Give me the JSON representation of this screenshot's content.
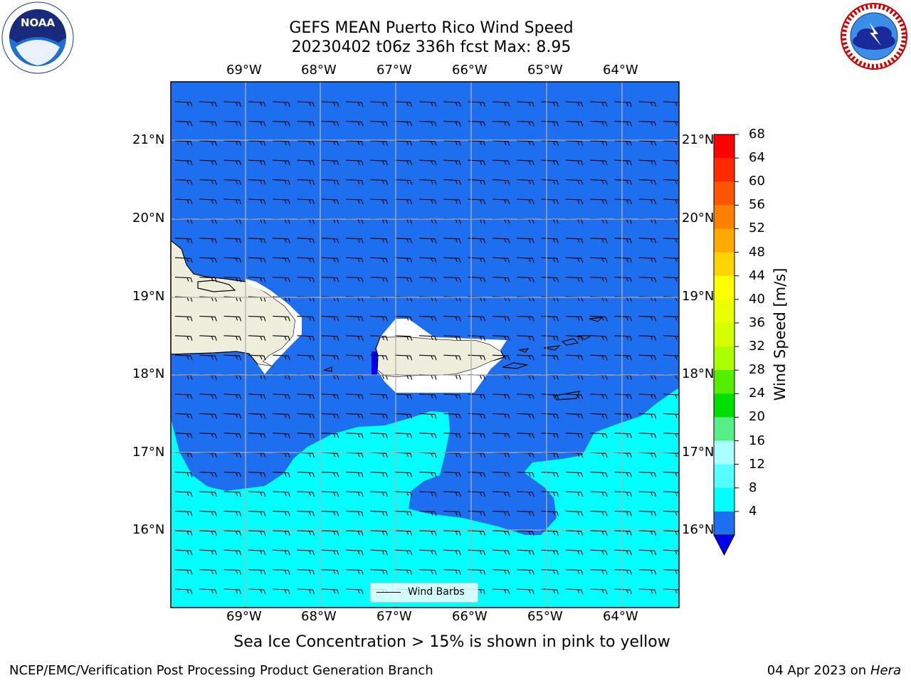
{
  "header": {
    "title_line1": "GEFS MEAN Puerto Rico Wind Speed",
    "title_line2": "20230402 t06z 336h fcst   Max: 8.95"
  },
  "map": {
    "lon_labels_top": [
      "69°W",
      "68°W",
      "67°W",
      "66°W",
      "65°W",
      "64°W"
    ],
    "lon_labels_bottom": [
      "69°W",
      "68°W",
      "67°W",
      "66°W",
      "65°W",
      "64°W"
    ],
    "lat_labels_left": [
      "21°N",
      "20°N",
      "19°N",
      "18°N",
      "17°N",
      "16°N"
    ],
    "lat_labels_right": [
      "21°N",
      "20°N",
      "19°N",
      "18°N",
      "17°N",
      "16°N"
    ],
    "legend_label": "Wind Barbs",
    "colors": {
      "ocean_4_8": "#1e6ef0",
      "ocean_8_12": "#00ffff",
      "land": "#efeedc",
      "below_4": "#0000f0"
    }
  },
  "colorbar": {
    "title": "Wind Speed [m/s]",
    "ticks": [
      "68",
      "64",
      "60",
      "56",
      "52",
      "48",
      "44",
      "40",
      "36",
      "32",
      "28",
      "24",
      "20",
      "16",
      "12",
      "8",
      "4"
    ],
    "colors_top_to_bottom": [
      "#ff0000",
      "#ff2a00",
      "#ff5500",
      "#ff8000",
      "#ffaa00",
      "#ffd400",
      "#ffff00",
      "#eaff00",
      "#d4ff00",
      "#aaff00",
      "#55ee00",
      "#00e000",
      "#55ee88",
      "#aaffff",
      "#55ffff",
      "#00ffff",
      "#1e6ef0"
    ],
    "extend_color": "#0000f0"
  },
  "note": "Sea Ice Concentration > 15% is shown in pink to yellow",
  "footer": {
    "left": "NCEP/EMC/Verification Post Processing Product Generation Branch",
    "date": "04 Apr 2023 on ",
    "machine": "Hera"
  },
  "logos": {
    "noaa": "NOAA",
    "nws": "NATIONAL WEATHER SERVICE"
  }
}
